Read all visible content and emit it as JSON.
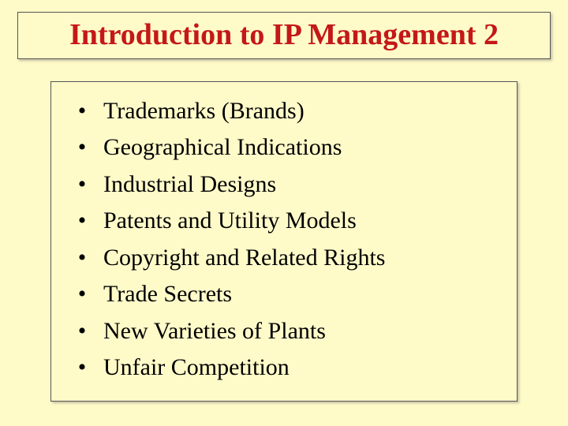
{
  "slide": {
    "title": "Introduction to IP Management 2",
    "title_color": "#c41818",
    "title_fontsize": 38,
    "background_color": "#fffbc9",
    "border_color": "#555555",
    "text_color": "#000000",
    "item_fontsize": 30,
    "bullet_char": "•",
    "items": [
      "Trademarks (Brands)",
      "Geographical Indications",
      "Industrial Designs",
      "Patents and Utility Models",
      "Copyright and Related Rights",
      "Trade Secrets",
      "New Varieties of Plants",
      "Unfair Competition"
    ]
  }
}
